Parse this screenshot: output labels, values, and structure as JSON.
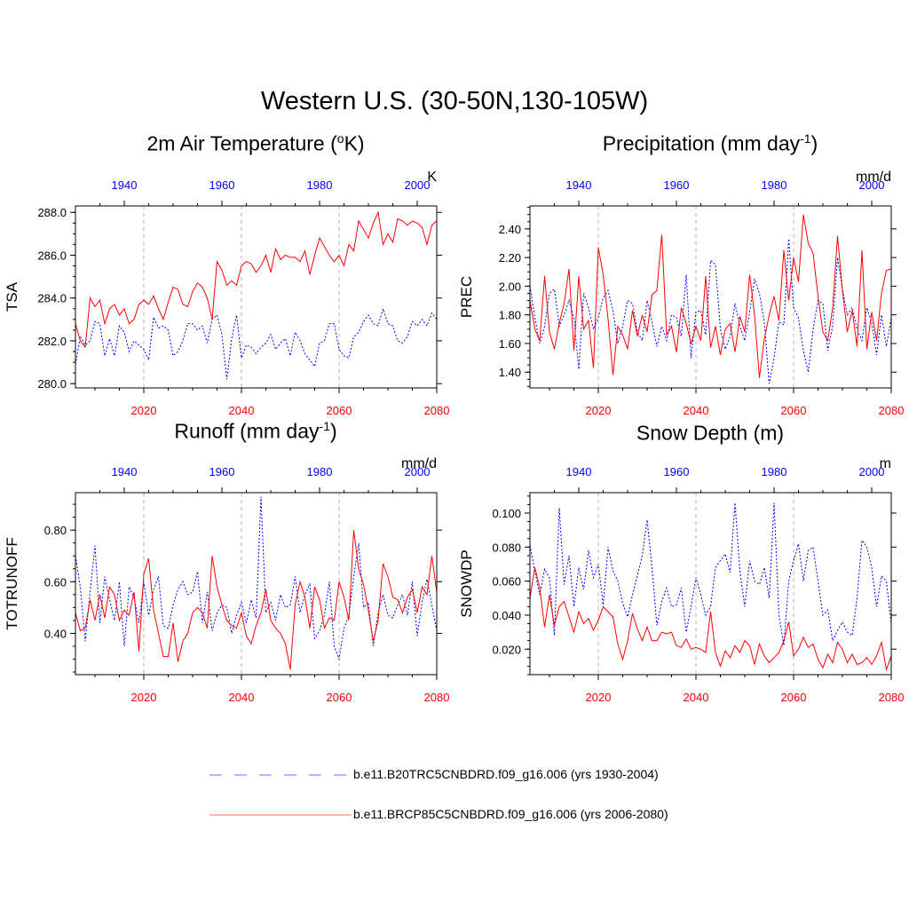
{
  "title": "Western U.S. (30-50N,130-105W)",
  "panels": [
    {
      "title": "2m Air Temperature (",
      "title_sup": "o",
      "title_end": "K)",
      "ylabel": "TSA",
      "units": "K"
    },
    {
      "title": "Precipitation (mm day",
      "title_sup": "-1",
      "title_end": ")",
      "ylabel": "PREC",
      "units": "mm/d"
    },
    {
      "title": "Runoff (mm day",
      "title_sup": "-1",
      "title_end": ")",
      "ylabel": "TOTRUNOFF",
      "units": "mm/d"
    },
    {
      "title": "Snow Depth (m)",
      "title_sup": "",
      "title_end": "",
      "ylabel": "SNOWDP",
      "units": "m"
    }
  ],
  "legend": [
    {
      "label": "b.e11.B20TRC5CNBDRD.f09_g16.006 (yrs 1930-2004)",
      "color": "#0000ff",
      "style": "dashed"
    },
    {
      "label": "b.e11.BRCP85C5CNBDRD.f09_g16.006 (yrs 2006-2080)",
      "color": "#ff0000",
      "style": "solid"
    }
  ],
  "colors": {
    "historical": "#0000ff",
    "future": "#ff0000",
    "gridline": "#b4b4b4"
  },
  "chart_data": [
    {
      "type": "line",
      "title": "2m Air Temperature (oK)",
      "ylabel": "TSA",
      "units": "K",
      "x_bottom": {
        "range": [
          2006,
          2080
        ],
        "ticks": [
          2020,
          2040,
          2060,
          2080
        ]
      },
      "x_top": {
        "range": [
          1930,
          2004
        ],
        "ticks": [
          1940,
          1960,
          1980,
          2000
        ]
      },
      "ylim": [
        279.8,
        288.3
      ],
      "yticks": [
        280.0,
        282.0,
        284.0,
        286.0,
        288.0
      ],
      "ytick_labels": [
        "280.0",
        "282.0",
        "284.0",
        "286.0",
        "288.0"
      ],
      "grid": "vertical dashed at x=2020, 2040, 2060",
      "series": [
        {
          "values": [
            280.9,
            282.2,
            281.8,
            282.0,
            282.9,
            282.8,
            281.3,
            282.1,
            281.3,
            282.7,
            282.4,
            281.5,
            282.0,
            281.8,
            281.6,
            281.1,
            283.1,
            282.6,
            282.7,
            282.5,
            281.3,
            281.5,
            282.0,
            282.8,
            282.8,
            282.5,
            282.7,
            281.9,
            283.0,
            283.2,
            282.3,
            280.2,
            282.1,
            283.2,
            281.2,
            281.8,
            281.7,
            281.4,
            281.7,
            281.9,
            282.3,
            281.6,
            281.9,
            282.1,
            281.3,
            282.4,
            282.0,
            281.4,
            281.1,
            280.8,
            281.9,
            282.0,
            282.8,
            282.8,
            281.6,
            281.3,
            281.2,
            282.2,
            282.4,
            282.9,
            283.2,
            282.8,
            282.7,
            283.5,
            282.8,
            282.7,
            282.0,
            281.9,
            282.2,
            282.9,
            282.7,
            283.0,
            282.7,
            283.3,
            283.0
          ]
        },
        {
          "values": [
            282.8,
            282.0,
            281.7,
            284.0,
            283.6,
            283.9,
            282.8,
            283.5,
            283.7,
            283.2,
            283.5,
            282.8,
            283.0,
            283.7,
            283.9,
            283.7,
            284.1,
            283.5,
            283.0,
            283.8,
            284.5,
            284.4,
            283.7,
            283.6,
            284.3,
            284.7,
            284.5,
            284.0,
            283.0,
            285.7,
            285.3,
            284.6,
            284.8,
            284.6,
            285.5,
            285.7,
            285.6,
            285.2,
            285.5,
            286.0,
            285.2,
            286.3,
            285.8,
            286.0,
            285.9,
            285.9,
            285.7,
            286.2,
            285.1,
            286.0,
            286.8,
            286.4,
            286.0,
            285.7,
            286.0,
            285.5,
            286.5,
            286.2,
            287.6,
            287.2,
            286.8,
            287.5,
            288.0,
            286.5,
            287.0,
            286.6,
            287.7,
            287.6,
            287.4,
            287.6,
            287.5,
            287.3,
            286.5,
            287.4,
            287.6
          ]
        }
      ]
    },
    {
      "type": "line",
      "title": "Precipitation (mm day-1)",
      "ylabel": "PREC",
      "units": "mm/d",
      "x_bottom": {
        "range": [
          2006,
          2080
        ],
        "ticks": [
          2020,
          2040,
          2060,
          2080
        ]
      },
      "x_top": {
        "range": [
          1930,
          2004
        ],
        "ticks": [
          1940,
          1960,
          1980,
          2000
        ]
      },
      "ylim": [
        1.29,
        2.56
      ],
      "yticks": [
        1.4,
        1.6,
        1.8,
        2.0,
        2.2,
        2.4
      ],
      "ytick_labels": [
        "1.40",
        "1.60",
        "1.80",
        "2.00",
        "2.20",
        "2.40"
      ],
      "grid": "vertical dashed at x=2020, 2040, 2060",
      "series": [
        {
          "values": [
            2.0,
            1.78,
            1.6,
            1.72,
            1.95,
            1.98,
            1.72,
            1.8,
            1.9,
            1.78,
            1.42,
            1.95,
            1.85,
            1.7,
            1.78,
            1.92,
            1.97,
            1.83,
            1.6,
            1.72,
            1.9,
            1.88,
            1.68,
            1.62,
            1.9,
            1.75,
            1.58,
            1.72,
            1.62,
            1.8,
            1.78,
            1.65,
            2.08,
            1.5,
            1.82,
            1.83,
            1.66,
            2.18,
            2.15,
            1.7,
            1.56,
            1.65,
            1.88,
            1.72,
            1.62,
            1.82,
            2.05,
            1.95,
            1.75,
            1.32,
            1.5,
            1.75,
            1.73,
            2.33,
            1.85,
            1.78,
            1.55,
            1.4,
            1.7,
            1.9,
            1.88,
            1.55,
            1.72,
            2.2,
            1.98,
            1.8,
            1.85,
            1.7,
            1.62,
            1.85,
            1.75,
            1.52,
            1.8,
            1.58,
            1.78
          ]
        },
        {
          "values": [
            1.9,
            1.7,
            1.62,
            2.07,
            1.68,
            1.56,
            1.74,
            1.88,
            2.12,
            1.55,
            2.07,
            1.7,
            1.76,
            1.43,
            2.27,
            2.08,
            1.77,
            1.38,
            1.72,
            1.66,
            1.56,
            1.83,
            1.65,
            1.8,
            1.68,
            1.94,
            1.97,
            2.36,
            1.66,
            1.72,
            1.54,
            1.85,
            1.74,
            1.6,
            1.72,
            1.62,
            2.07,
            1.57,
            1.72,
            1.52,
            1.7,
            1.74,
            1.54,
            1.79,
            1.68,
            2.08,
            1.8,
            1.36,
            1.63,
            1.8,
            1.93,
            1.76,
            2.25,
            1.9,
            2.2,
            2.03,
            2.5,
            2.3,
            2.23,
            1.93,
            1.68,
            1.62,
            1.85,
            2.35,
            1.97,
            1.68,
            1.83,
            1.58,
            2.25,
            1.56,
            1.82,
            1.62,
            1.95,
            2.11,
            2.12
          ]
        }
      ]
    },
    {
      "type": "line",
      "title": "Runoff (mm day-1)",
      "ylabel": "TOTRUNOFF",
      "units": "mm/d",
      "x_bottom": {
        "range": [
          2006,
          2080
        ],
        "ticks": [
          2020,
          2040,
          2060,
          2080
        ]
      },
      "x_top": {
        "range": [
          1930,
          2004
        ],
        "ticks": [
          1940,
          1960,
          1980,
          2000
        ]
      },
      "ylim": [
        0.24,
        0.945
      ],
      "yticks": [
        0.4,
        0.6,
        0.8
      ],
      "ytick_labels": [
        "0.40",
        "0.60",
        "0.80"
      ],
      "grid": "vertical dashed at x=2020, 2040, 2060",
      "series": [
        {
          "values": [
            0.7,
            0.58,
            0.37,
            0.56,
            0.74,
            0.44,
            0.62,
            0.53,
            0.45,
            0.6,
            0.35,
            0.58,
            0.54,
            0.44,
            0.6,
            0.47,
            0.57,
            0.62,
            0.43,
            0.42,
            0.51,
            0.57,
            0.6,
            0.55,
            0.56,
            0.64,
            0.44,
            0.56,
            0.41,
            0.48,
            0.51,
            0.5,
            0.4,
            0.47,
            0.52,
            0.44,
            0.53,
            0.46,
            0.93,
            0.48,
            0.52,
            0.45,
            0.55,
            0.5,
            0.51,
            0.62,
            0.48,
            0.55,
            0.59,
            0.38,
            0.41,
            0.47,
            0.6,
            0.35,
            0.3,
            0.42,
            0.47,
            0.62,
            0.75,
            0.5,
            0.52,
            0.35,
            0.48,
            0.55,
            0.47,
            0.46,
            0.51,
            0.55,
            0.47,
            0.6,
            0.39,
            0.52,
            0.61,
            0.51,
            0.41
          ]
        },
        {
          "values": [
            0.48,
            0.41,
            0.42,
            0.53,
            0.45,
            0.55,
            0.46,
            0.58,
            0.55,
            0.45,
            0.49,
            0.47,
            0.56,
            0.33,
            0.63,
            0.69,
            0.49,
            0.4,
            0.31,
            0.31,
            0.44,
            0.29,
            0.37,
            0.4,
            0.48,
            0.5,
            0.48,
            0.42,
            0.7,
            0.58,
            0.51,
            0.45,
            0.43,
            0.42,
            0.48,
            0.39,
            0.36,
            0.43,
            0.48,
            0.57,
            0.45,
            0.42,
            0.4,
            0.36,
            0.26,
            0.51,
            0.6,
            0.54,
            0.42,
            0.58,
            0.53,
            0.42,
            0.46,
            0.45,
            0.6,
            0.54,
            0.45,
            0.8,
            0.65,
            0.59,
            0.49,
            0.37,
            0.45,
            0.67,
            0.62,
            0.54,
            0.53,
            0.48,
            0.54,
            0.57,
            0.48,
            0.58,
            0.55,
            0.7,
            0.56
          ]
        }
      ]
    },
    {
      "type": "line",
      "title": "Snow Depth (m)",
      "ylabel": "SNOWDP",
      "units": "m",
      "x_bottom": {
        "range": [
          2006,
          2080
        ],
        "ticks": [
          2020,
          2040,
          2060,
          2080
        ]
      },
      "x_top": {
        "range": [
          1930,
          2004
        ],
        "ticks": [
          1940,
          1960,
          1980,
          2000
        ]
      },
      "ylim": [
        0.005,
        0.112
      ],
      "yticks": [
        0.02,
        0.04,
        0.06,
        0.08,
        0.1
      ],
      "ytick_labels": [
        "0.020",
        "0.040",
        "0.060",
        "0.080",
        "0.100"
      ],
      "grid": "vertical dashed at x=2020, 2040, 2060",
      "series": [
        {
          "values": [
            0.081,
            0.066,
            0.052,
            0.067,
            0.062,
            0.028,
            0.103,
            0.058,
            0.075,
            0.045,
            0.068,
            0.055,
            0.078,
            0.062,
            0.07,
            0.046,
            0.08,
            0.066,
            0.06,
            0.047,
            0.039,
            0.052,
            0.063,
            0.075,
            0.096,
            0.068,
            0.034,
            0.048,
            0.056,
            0.045,
            0.046,
            0.056,
            0.03,
            0.045,
            0.062,
            0.052,
            0.04,
            0.045,
            0.068,
            0.072,
            0.076,
            0.065,
            0.106,
            0.066,
            0.045,
            0.072,
            0.06,
            0.058,
            0.068,
            0.05,
            0.106,
            0.04,
            0.022,
            0.06,
            0.072,
            0.082,
            0.06,
            0.078,
            0.08,
            0.06,
            0.04,
            0.043,
            0.025,
            0.031,
            0.036,
            0.03,
            0.028,
            0.05,
            0.084,
            0.08,
            0.068,
            0.045,
            0.063,
            0.06,
            0.035
          ]
        },
        {
          "values": [
            0.05,
            0.068,
            0.056,
            0.033,
            0.052,
            0.034,
            0.045,
            0.048,
            0.039,
            0.03,
            0.042,
            0.035,
            0.038,
            0.031,
            0.037,
            0.045,
            0.042,
            0.039,
            0.023,
            0.014,
            0.025,
            0.041,
            0.032,
            0.025,
            0.033,
            0.025,
            0.025,
            0.03,
            0.029,
            0.03,
            0.022,
            0.021,
            0.026,
            0.02,
            0.021,
            0.02,
            0.018,
            0.042,
            0.018,
            0.01,
            0.019,
            0.015,
            0.022,
            0.018,
            0.025,
            0.022,
            0.011,
            0.023,
            0.016,
            0.012,
            0.015,
            0.018,
            0.025,
            0.036,
            0.016,
            0.02,
            0.027,
            0.021,
            0.023,
            0.014,
            0.009,
            0.017,
            0.012,
            0.024,
            0.02,
            0.012,
            0.017,
            0.011,
            0.012,
            0.015,
            0.011,
            0.016,
            0.024,
            0.008,
            0.016
          ]
        }
      ]
    }
  ]
}
